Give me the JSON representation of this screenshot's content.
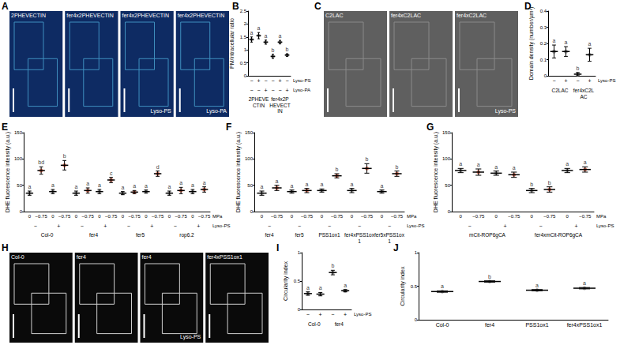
{
  "figure": {
    "image_panels": [
      {
        "label": "A",
        "images": [
          {
            "title": "2PHEVECTIN"
          },
          {
            "title": "fer4x2PHEVECTIN"
          },
          {
            "title": "fer4x2PHEVECTIN",
            "treatment": "Lyso-PS"
          },
          {
            "title": "fer4x2PHEVECTIN",
            "treatment": "Lyso-PA"
          }
        ]
      },
      {
        "label": "C",
        "images": [
          {
            "title": "C2LAC"
          },
          {
            "title": "fer4xC2LAC"
          },
          {
            "title": "fer4xC2LAC",
            "treatment": "Lyso-PS"
          }
        ]
      },
      {
        "label": "H",
        "images": [
          {
            "title": "Col-0"
          },
          {
            "title": "fer4"
          },
          {
            "title": "fer4",
            "treatment": "Lyso-PS"
          },
          {
            "title": "fer4xPSS1ox1"
          }
        ]
      }
    ]
  },
  "chart_data": [
    {
      "type": "scatter",
      "title": "B",
      "y_label": "PM/intracellular ratio",
      "x_label": "Lyso-PS",
      "categories": [
        "−",
        "+",
        "−",
        "−",
        "+",
        "−"
      ],
      "rows": [
        {
          "label": "Lyso-PA",
          "values": [
            "−",
            "−",
            "+",
            "−",
            "−",
            "+"
          ]
        }
      ],
      "groups": [
        "2PHEVECTIN",
        "fer4x2PHEVECTIN"
      ],
      "values": [
        1.4,
        1.55,
        1.3,
        0.75,
        1.3,
        0.8
      ],
      "errors": [
        0.1,
        0.12,
        0.08,
        0.08,
        0.07,
        0.05
      ],
      "letters": [
        "a",
        "a",
        "a",
        "b",
        "a",
        "b"
      ],
      "colors": [
        "#9e9e9e",
        "#9e9e9e",
        "#9e9e9e",
        "#9e9e9e",
        "#9e9e9e",
        "#9e9e9e"
      ],
      "marker": "circle",
      "grid": false,
      "ylim": [
        0,
        2.5
      ],
      "yticks": [
        0,
        0.5,
        1,
        1.5,
        2,
        2.5
      ]
    },
    {
      "type": "scatter",
      "title": "D",
      "y_label": "Domain density (number/µm²)",
      "x_label": "Lyso-PS",
      "categories": [
        "−",
        "+",
        "−",
        "+"
      ],
      "rows": [],
      "groups": [
        "C2LAC",
        "fer4xC2LAC"
      ],
      "values": [
        0.15,
        0.15,
        0.01,
        0.13
      ],
      "errors": [
        0.04,
        0.03,
        0.01,
        0.04
      ],
      "letters": [
        "a",
        "a",
        "b",
        "a"
      ],
      "colors": [
        "#8c8c8c",
        "#8c8c8c",
        "#8c8c8c",
        "#8c8c8c"
      ],
      "marker": "circle",
      "grid": false,
      "ylim": [
        0,
        0.4
      ],
      "yticks": [
        0,
        0.1,
        0.2,
        0.3,
        0.4
      ]
    },
    {
      "type": "scatter",
      "title": "E",
      "y_label": "DHE fluorescence intensity (a.u.)",
      "x_label": "MPa",
      "categories": [
        "0",
        "−0.75",
        "0",
        "−0.75",
        "0",
        "−0.75",
        "0",
        "−0.75",
        "0",
        "−0.75",
        "0",
        "−0.75",
        "0",
        "−0.75",
        "0",
        "−0.75"
      ],
      "rows": [
        {
          "label": "Lyso-PS",
          "values": [
            "−",
            "+",
            "−",
            "+",
            "−",
            "+",
            "−",
            "+"
          ]
        }
      ],
      "groups": [
        "Col-0",
        "fer4",
        "fer5",
        "rop6.2"
      ],
      "values": [
        35,
        78,
        38,
        88,
        35,
        40,
        38,
        60,
        35,
        37,
        38,
        72,
        35,
        40,
        38,
        42
      ],
      "errors": [
        4,
        7,
        4,
        9,
        4,
        5,
        4,
        5,
        3,
        3,
        3,
        5,
        4,
        6,
        4,
        5
      ],
      "letters": [
        "a",
        "bd",
        "a",
        "b",
        "a",
        "a",
        "a",
        "c",
        "a",
        "a",
        "a",
        "d",
        "a",
        "a",
        "a",
        "a"
      ],
      "colors": [
        "#9e9e9e",
        "#e66a4e",
        "#9e9e9e",
        "#e66a4e",
        "#9e9e9e",
        "#e66a4e",
        "#9e9e9e",
        "#e66a4e",
        "#9e9e9e",
        "#e66a4e",
        "#9e9e9e",
        "#e66a4e",
        "#9e9e9e",
        "#e66a4e",
        "#9e9e9e",
        "#e66a4e"
      ],
      "marker": "circle",
      "grid": false,
      "ylim": [
        0,
        150
      ],
      "yticks": [
        0,
        50,
        100,
        150
      ]
    },
    {
      "type": "scatter",
      "title": "F",
      "y_label": "DHE fluorescence intensity (a.u.)",
      "x_label": "MPa",
      "categories": [
        "0",
        "−0.75",
        "0",
        "−0.75",
        "0",
        "−0.75",
        "0",
        "−0.75",
        "0",
        "−0.75"
      ],
      "rows": [
        {
          "label": "Lyso-PS",
          "values": [
            "−",
            "−",
            "−",
            "−",
            "−"
          ]
        }
      ],
      "groups": [
        "fer4",
        "fer5",
        "PSS1ox1",
        "fer4xPSS1ox1",
        "fer5xPSS1ox1"
      ],
      "values": [
        35,
        45,
        38,
        40,
        40,
        68,
        40,
        82,
        38,
        72
      ],
      "errors": [
        4,
        5,
        3,
        4,
        3,
        4,
        4,
        9,
        3,
        5
      ],
      "letters": [
        "a",
        "a",
        "a",
        "a",
        "a",
        "b",
        "a",
        "b",
        "a",
        "b"
      ],
      "colors": [
        "#9e9e9e",
        "#e66a4e",
        "#9e9e9e",
        "#e66a4e",
        "#9e9e9e",
        "#e66a4e",
        "#9e9e9e",
        "#e66a4e",
        "#9e9e9e",
        "#e66a4e"
      ],
      "marker": "circle",
      "grid": false,
      "ylim": [
        0,
        150
      ],
      "yticks": [
        0,
        50,
        100,
        150
      ]
    },
    {
      "type": "scatter",
      "title": "G",
      "y_label": "DHE fluorescence intensity (a.u.)",
      "x_label": "MPa",
      "categories": [
        "0",
        "−0.75",
        "0",
        "−0.75",
        "0",
        "−0.75",
        "0",
        "−0.75"
      ],
      "rows": [
        {
          "label": "Lyso-PS",
          "values": [
            "−",
            "+",
            "−",
            "+"
          ]
        }
      ],
      "groups": [
        "mCit-ROP6gCA",
        "fer4xmCit-ROP6gCA"
      ],
      "values": [
        78,
        75,
        73,
        70,
        40,
        42,
        78,
        80
      ],
      "errors": [
        4,
        6,
        4,
        5,
        4,
        5,
        4,
        5
      ],
      "letters": [
        "a",
        "a",
        "a",
        "a",
        "b",
        "b",
        "a",
        "a"
      ],
      "colors": [
        "#9e9e9e",
        "#e66a4e",
        "#9e9e9e",
        "#e66a4e",
        "#9e9e9e",
        "#e66a4e",
        "#9e9e9e",
        "#e66a4e"
      ],
      "marker": "circle",
      "grid": false,
      "ylim": [
        0,
        150
      ],
      "yticks": [
        0,
        50,
        100,
        150
      ]
    },
    {
      "type": "scatter",
      "title": "I",
      "y_label": "Circularity index",
      "x_label": "Lyso-PS",
      "categories": [
        "−",
        "+",
        "−",
        "+"
      ],
      "rows": [],
      "groups": [
        "Col-0",
        "fer4"
      ],
      "values": [
        0.28,
        0.27,
        0.65,
        0.33
      ],
      "errors": [
        0.03,
        0.03,
        0.04,
        0.02
      ],
      "letters": [
        "a",
        "a",
        "b",
        "a"
      ],
      "colors": [
        "#9e9e9e",
        "#9e9e9e",
        "#9e9e9e",
        "#9e9e9e"
      ],
      "marker": "circle",
      "grid": false,
      "ylim": [
        0,
        1
      ],
      "yticks": [
        0,
        0.5,
        1
      ]
    },
    {
      "type": "scatter",
      "title": "J",
      "y_label": "Circularity index",
      "categories": [
        "Col-0",
        "fer4",
        "PSS1ox1",
        "fer4xPSS1ox1"
      ],
      "rows": [],
      "groups": [],
      "values": [
        0.42,
        0.57,
        0.44,
        0.47
      ],
      "errors": [
        0.01,
        0.01,
        0.01,
        0.01
      ],
      "letters": [
        "a",
        "b",
        "a",
        "a"
      ],
      "colors": [
        "#9e9e9e",
        "#9e9e9e",
        "#9e9e9e",
        "#9e9e9e"
      ],
      "marker": "circle",
      "grid": false,
      "ylim": [
        0,
        1
      ],
      "yticks": [
        0,
        0.5,
        1
      ]
    }
  ]
}
